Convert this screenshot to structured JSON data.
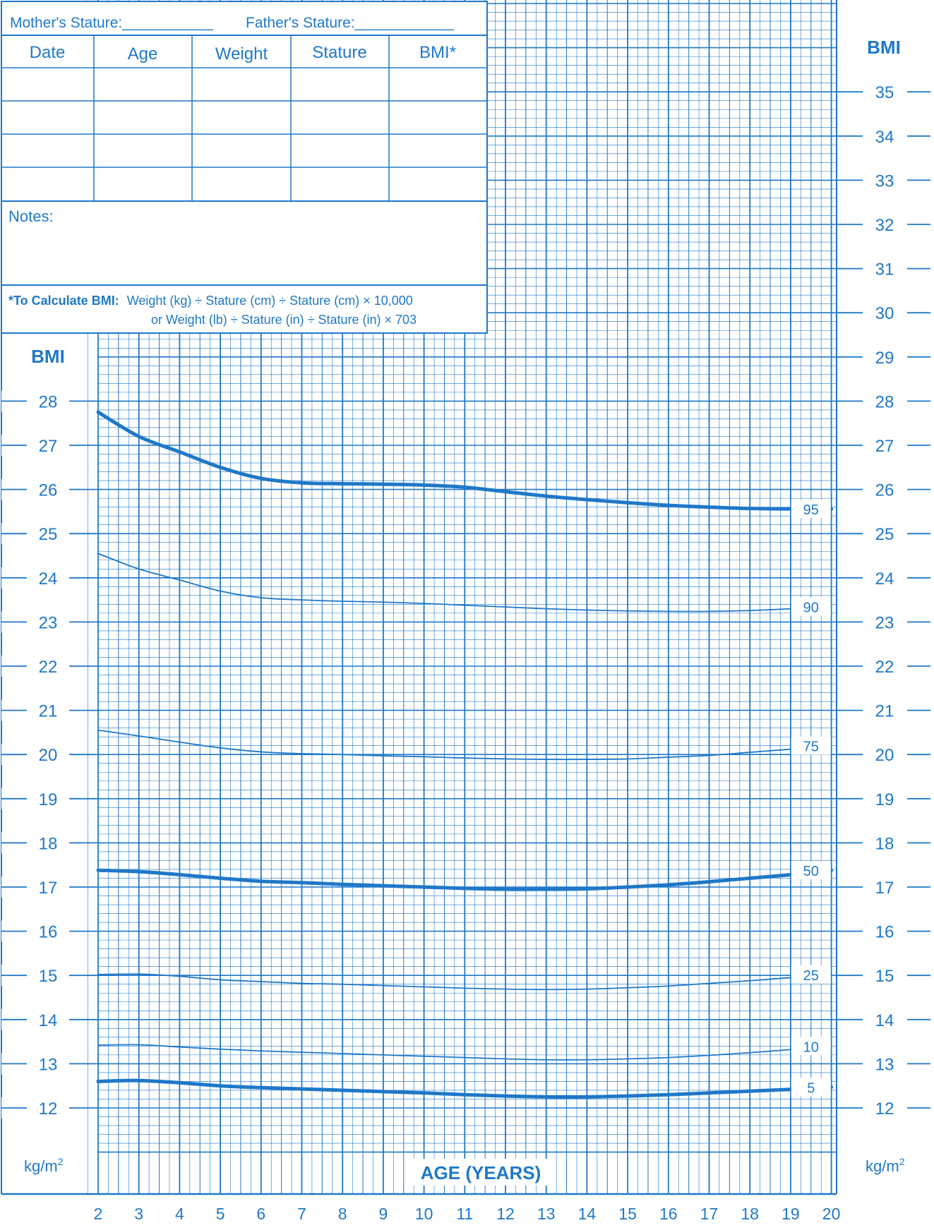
{
  "header": {
    "mother_stature": "Mother's Stature:___________",
    "father_stature": "Father's Stature:____________"
  },
  "record_table": {
    "columns": [
      "Date",
      "Age",
      "Weight",
      "Stature",
      "BMI*"
    ],
    "rows": [
      [
        "",
        "",
        "",
        "",
        ""
      ],
      [
        "",
        "",
        "",
        "",
        ""
      ],
      [
        "",
        "",
        "",
        "",
        ""
      ],
      [
        "",
        "",
        "",
        "",
        ""
      ]
    ]
  },
  "notes_label": "Notes:",
  "bmi_formula": {
    "bold": "*To Calculate BMI:",
    "line1": "Weight (kg) ÷ Stature (cm) ÷ Stature (cm) × 10,000",
    "line2": "or Weight (lb) ÷ Stature (in) ÷ Stature (in) × 703"
  },
  "colors": {
    "accent": "#1f78c8",
    "grid": "#1f78c8",
    "background": "#ffffff"
  },
  "chart_data": {
    "type": "line",
    "title": "",
    "xlabel": "AGE (YEARS)",
    "ylabel": "BMI",
    "y_unit": "kg/m2",
    "xlim": [
      2,
      20
    ],
    "ylim": [
      11,
      37
    ],
    "x_ticks": [
      2,
      3,
      4,
      5,
      6,
      7,
      8,
      9,
      10,
      11,
      12,
      13,
      14,
      15,
      16,
      17,
      18,
      19,
      20
    ],
    "left_y_ticks": [
      12,
      13,
      14,
      15,
      16,
      17,
      18,
      19,
      20,
      21,
      22,
      23,
      24,
      25,
      26,
      27,
      28
    ],
    "right_y_ticks": [
      12,
      13,
      14,
      15,
      16,
      17,
      18,
      19,
      20,
      21,
      22,
      23,
      24,
      25,
      26,
      27,
      28,
      29,
      30,
      31,
      32,
      33,
      34,
      35
    ],
    "grid": true,
    "x": [
      2,
      3,
      4,
      5,
      6,
      7,
      8,
      9,
      10,
      11,
      12,
      13,
      14,
      15,
      16,
      17,
      18,
      19,
      20
    ],
    "series": [
      {
        "name": "95",
        "bold": true,
        "values": [
          27.75,
          27.2,
          26.85,
          26.5,
          26.25,
          26.15,
          26.13,
          26.12,
          26.1,
          26.05,
          25.95,
          25.85,
          25.77,
          25.7,
          25.64,
          25.6,
          25.57,
          25.56,
          25.56
        ]
      },
      {
        "name": "90",
        "bold": false,
        "values": [
          24.55,
          24.2,
          23.95,
          23.7,
          23.55,
          23.5,
          23.47,
          23.45,
          23.42,
          23.38,
          23.34,
          23.3,
          23.27,
          23.25,
          23.24,
          23.24,
          23.26,
          23.3,
          23.35
        ]
      },
      {
        "name": "75",
        "bold": false,
        "values": [
          20.55,
          20.42,
          20.28,
          20.15,
          20.06,
          20.02,
          20.0,
          19.97,
          19.95,
          19.92,
          19.9,
          19.89,
          19.89,
          19.9,
          19.94,
          19.98,
          20.05,
          20.12,
          20.2
        ]
      },
      {
        "name": "50",
        "bold": true,
        "values": [
          17.38,
          17.35,
          17.28,
          17.2,
          17.13,
          17.1,
          17.06,
          17.03,
          17.0,
          16.97,
          16.95,
          16.95,
          16.96,
          17.0,
          17.05,
          17.12,
          17.2,
          17.28,
          17.38
        ]
      },
      {
        "name": "25",
        "bold": false,
        "values": [
          15.02,
          15.03,
          14.98,
          14.9,
          14.86,
          14.82,
          14.8,
          14.77,
          14.74,
          14.71,
          14.69,
          14.68,
          14.69,
          14.72,
          14.76,
          14.82,
          14.88,
          14.95,
          15.02
        ]
      },
      {
        "name": "10",
        "bold": false,
        "values": [
          13.42,
          13.43,
          13.38,
          13.33,
          13.29,
          13.26,
          13.23,
          13.2,
          13.17,
          13.14,
          13.11,
          13.09,
          13.09,
          13.11,
          13.14,
          13.19,
          13.25,
          13.32,
          13.4
        ]
      },
      {
        "name": "5",
        "bold": true,
        "values": [
          12.6,
          12.62,
          12.57,
          12.5,
          12.46,
          12.43,
          12.4,
          12.37,
          12.34,
          12.3,
          12.27,
          12.25,
          12.25,
          12.27,
          12.3,
          12.34,
          12.38,
          12.42,
          12.47
        ]
      }
    ]
  }
}
